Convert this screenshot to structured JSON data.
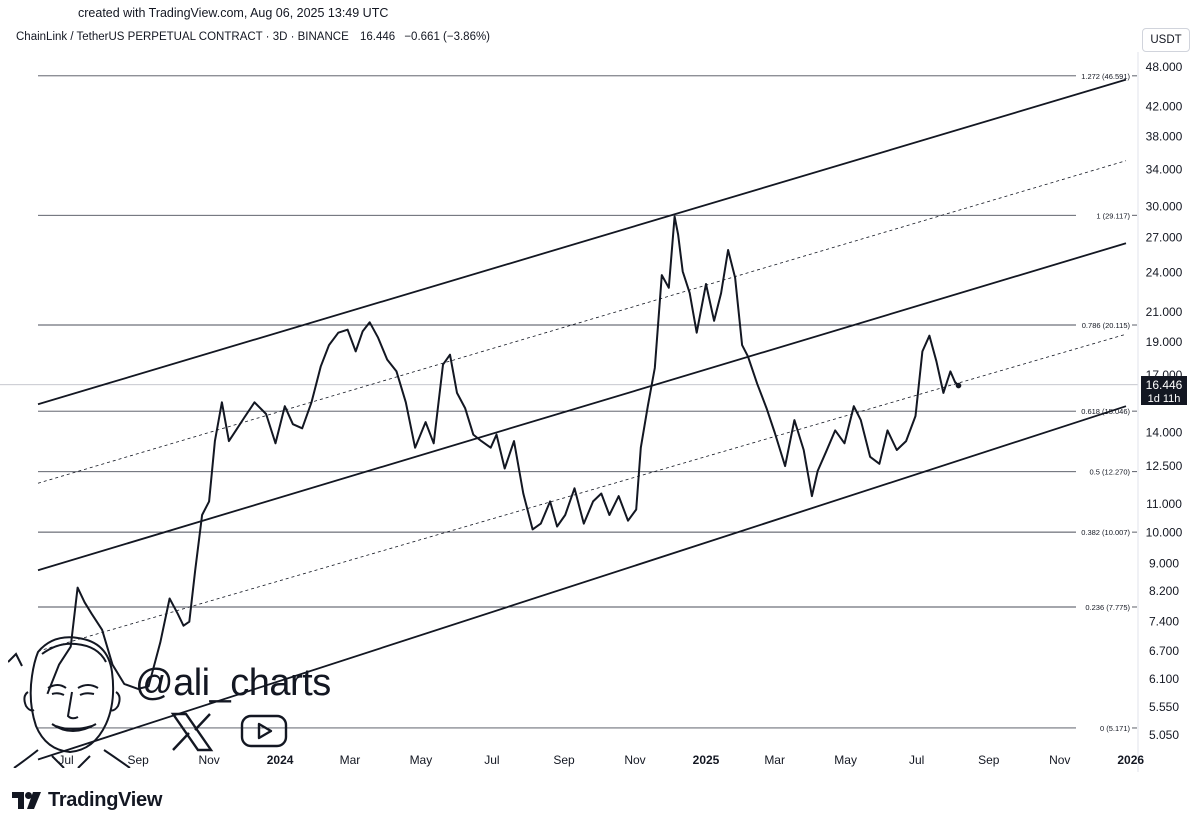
{
  "header": {
    "created": "created with TradingView.com, Aug 06, 2025 13:49 UTC",
    "symbol": "ChainLink / TetherUS PERPETUAL CONTRACT · 3D · BINANCE",
    "price": "16.446",
    "change": "−0.661 (−3.86%)",
    "currency": "USDT"
  },
  "price_tag": {
    "value": "16.446",
    "countdown": "1d 11h"
  },
  "watermark": {
    "handle": "@ali_charts"
  },
  "brand": {
    "name": "TradingView"
  },
  "colors": {
    "line": "#131722",
    "grid": "#e0e3eb",
    "tag_bg": "#131722",
    "tag_text": "#ffffff"
  },
  "chart_data": {
    "type": "line",
    "y_scale": "log",
    "ylim": [
      4.8,
      50
    ],
    "y_ticks": [
      "48.000",
      "42.000",
      "38.000",
      "34.000",
      "30.000",
      "27.000",
      "24.000",
      "21.000",
      "19.000",
      "17.000",
      "14.000",
      "12.500",
      "11.000",
      "10.000",
      "9.000",
      "8.200",
      "7.400",
      "6.700",
      "6.100",
      "5.550",
      "5.050"
    ],
    "x_ticks": [
      "Jul",
      "Sep",
      "Nov",
      "2024",
      "Mar",
      "May",
      "Jul",
      "Sep",
      "Nov",
      "2025",
      "Mar",
      "May",
      "Jul",
      "Sep",
      "Nov",
      "2026"
    ],
    "fib_levels": [
      {
        "label": "1.272 (46.591)",
        "value": 46.591
      },
      {
        "label": "1 (29.117)",
        "value": 29.117
      },
      {
        "label": "0.786 (20.115)",
        "value": 20.115
      },
      {
        "label": "0.618 (15.046)",
        "value": 15.046
      },
      {
        "label": "0.5 (12.270)",
        "value": 12.27
      },
      {
        "label": "0.382 (10.007)",
        "value": 10.007
      },
      {
        "label": "0.236 (7.775)",
        "value": 7.775
      },
      {
        "label": "0 (5.171)",
        "value": 5.171
      }
    ],
    "channel": {
      "x_range": [
        "2023-05-20",
        "2026-01-10"
      ],
      "upper": [
        15.4,
        46.0
      ],
      "middle": [
        8.8,
        26.5
      ],
      "lower": [
        4.65,
        15.3
      ],
      "dashed_upper": [
        11.8,
        35.0
      ],
      "dashed_lower": [
        6.7,
        19.5
      ]
    },
    "series": [
      {
        "x": [
          "2023-06-15",
          "2023-06-25",
          "2023-07-05",
          "2023-07-11",
          "2023-07-17",
          "2023-07-23",
          "2023-08-01",
          "2023-08-10",
          "2023-08-20",
          "2023-09-01",
          "2023-09-10",
          "2023-09-20",
          "2023-09-28",
          "2023-10-05",
          "2023-10-10",
          "2023-10-15",
          "2023-10-20",
          "2023-10-26",
          "2023-11-01",
          "2023-11-06",
          "2023-11-12",
          "2023-11-18",
          "2023-11-24",
          "2023-12-01",
          "2023-12-10",
          "2023-12-20",
          "2023-12-28",
          "2024-01-05",
          "2024-01-12",
          "2024-01-20",
          "2024-01-28",
          "2024-02-05",
          "2024-02-12",
          "2024-02-20",
          "2024-02-28",
          "2024-03-06",
          "2024-03-12",
          "2024-03-18",
          "2024-03-25",
          "2024-04-02",
          "2024-04-10",
          "2024-04-18",
          "2024-04-26",
          "2024-05-05",
          "2024-05-12",
          "2024-05-20",
          "2024-05-26",
          "2024-06-01",
          "2024-06-08",
          "2024-06-15",
          "2024-06-22",
          "2024-06-30",
          "2024-07-05",
          "2024-07-12",
          "2024-07-20",
          "2024-07-28",
          "2024-08-05",
          "2024-08-12",
          "2024-08-20",
          "2024-08-26",
          "2024-09-02",
          "2024-09-10",
          "2024-09-18",
          "2024-09-26",
          "2024-10-03",
          "2024-10-10",
          "2024-10-18",
          "2024-10-26",
          "2024-11-02",
          "2024-11-06",
          "2024-11-12",
          "2024-11-18",
          "2024-11-24",
          "2024-11-30",
          "2024-12-05",
          "2024-12-08",
          "2024-12-12",
          "2024-12-18",
          "2024-12-24",
          "2025-01-01",
          "2025-01-08",
          "2025-01-14",
          "2025-01-20",
          "2025-01-26",
          "2025-02-01",
          "2025-02-06",
          "2025-02-14",
          "2025-02-22",
          "2025-03-01",
          "2025-03-10",
          "2025-03-18",
          "2025-03-26",
          "2025-04-02",
          "2025-04-07",
          "2025-04-14",
          "2025-04-22",
          "2025-04-30",
          "2025-05-08",
          "2025-05-14",
          "2025-05-22",
          "2025-05-30",
          "2025-06-06",
          "2025-06-14",
          "2025-06-22",
          "2025-06-30",
          "2025-07-06",
          "2025-07-12",
          "2025-07-18",
          "2025-07-24",
          "2025-07-30",
          "2025-08-03",
          "2025-08-06"
        ],
        "values": [
          5.8,
          6.4,
          6.8,
          8.3,
          7.9,
          7.6,
          7.2,
          6.4,
          6.0,
          5.9,
          5.95,
          6.9,
          8.0,
          7.6,
          7.3,
          7.4,
          8.8,
          10.6,
          11.1,
          13.6,
          15.5,
          13.6,
          14.1,
          14.7,
          15.5,
          14.9,
          13.5,
          15.3,
          14.4,
          14.2,
          15.5,
          17.5,
          18.8,
          19.6,
          19.8,
          18.4,
          19.7,
          20.3,
          19.3,
          17.9,
          17.2,
          15.5,
          13.3,
          14.5,
          13.5,
          17.6,
          18.2,
          16.0,
          15.2,
          13.9,
          13.6,
          13.3,
          13.9,
          12.4,
          13.6,
          11.4,
          10.1,
          10.3,
          11.1,
          10.2,
          10.6,
          11.6,
          10.3,
          11.1,
          11.4,
          10.6,
          11.3,
          10.4,
          10.8,
          13.3,
          15.3,
          17.4,
          23.8,
          22.8,
          29.0,
          27.3,
          24.1,
          22.4,
          19.6,
          23.1,
          20.4,
          22.4,
          25.9,
          23.6,
          18.8,
          18.1,
          16.5,
          15.2,
          14.0,
          12.5,
          14.6,
          13.2,
          11.3,
          12.3,
          13.1,
          14.1,
          13.5,
          15.3,
          14.6,
          12.9,
          12.6,
          14.1,
          13.2,
          13.6,
          14.8,
          18.4,
          19.4,
          17.8,
          16.0,
          17.2,
          16.6,
          16.4
        ]
      }
    ]
  }
}
